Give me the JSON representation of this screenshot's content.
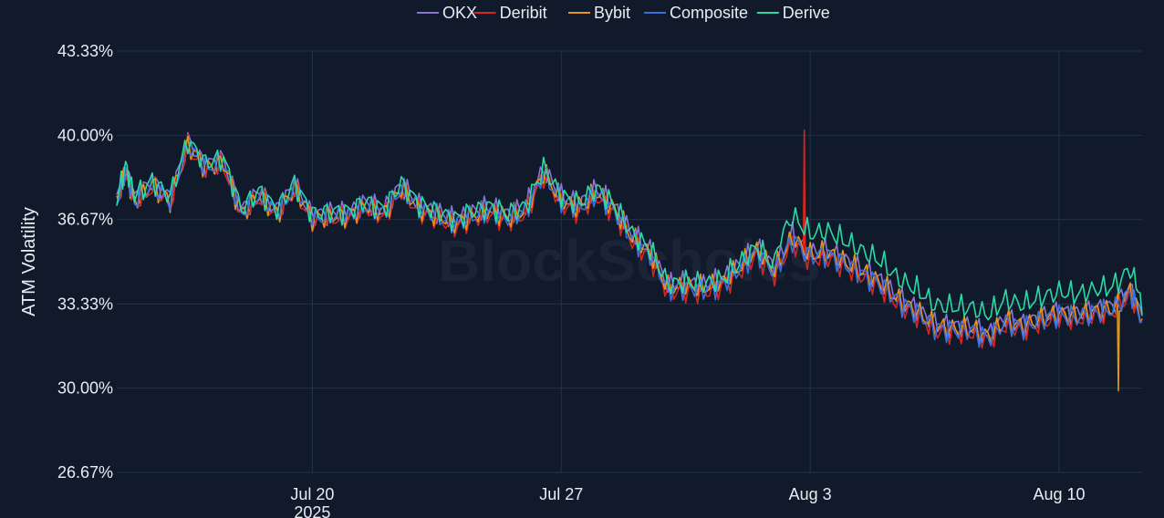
{
  "chart_data": {
    "type": "line",
    "ylabel": "ATM Volatility",
    "xlabel": "",
    "x_range": [
      "2025-07-14T12:00",
      "2025-08-12T08:00"
    ],
    "ylim": [
      26.67,
      43.33
    ],
    "y_ticks": [
      "43.33%",
      "40.00%",
      "36.67%",
      "33.33%",
      "30.00%",
      "26.67%"
    ],
    "y_tick_values": [
      43.33,
      40.0,
      36.67,
      33.33,
      30.0,
      26.67
    ],
    "x_ticks": [
      {
        "date": "2025-07-20",
        "label": "Jul 20",
        "sublabel": "2025"
      },
      {
        "date": "2025-07-27",
        "label": "Jul 27",
        "sublabel": ""
      },
      {
        "date": "2025-08-03",
        "label": "Aug 3",
        "sublabel": ""
      },
      {
        "date": "2025-08-10",
        "label": "Aug 10",
        "sublabel": ""
      }
    ],
    "grid": true,
    "legend_position": "top-center",
    "watermark": "BlockScholes",
    "base_dates": [
      "2025-07-14T12:00",
      "2025-07-14T18:00",
      "2025-07-15T00:00",
      "2025-07-15T12:00",
      "2025-07-16T00:00",
      "2025-07-16T12:00",
      "2025-07-17T00:00",
      "2025-07-17T12:00",
      "2025-07-18T00:00",
      "2025-07-18T12:00",
      "2025-07-19T00:00",
      "2025-07-19T12:00",
      "2025-07-20T00:00",
      "2025-07-20T12:00",
      "2025-07-21T00:00",
      "2025-07-21T12:00",
      "2025-07-22T00:00",
      "2025-07-22T12:00",
      "2025-07-23T00:00",
      "2025-07-23T12:00",
      "2025-07-24T00:00",
      "2025-07-24T12:00",
      "2025-07-25T00:00",
      "2025-07-25T12:00",
      "2025-07-26T00:00",
      "2025-07-26T12:00",
      "2025-07-27T00:00",
      "2025-07-27T12:00",
      "2025-07-28T00:00",
      "2025-07-28T12:00",
      "2025-07-29T00:00",
      "2025-07-29T12:00",
      "2025-07-30T00:00",
      "2025-07-30T12:00",
      "2025-07-31T00:00",
      "2025-07-31T12:00",
      "2025-08-01T00:00",
      "2025-08-01T12:00",
      "2025-08-02T00:00",
      "2025-08-02T12:00",
      "2025-08-03T00:00",
      "2025-08-03T12:00",
      "2025-08-04T00:00",
      "2025-08-04T12:00",
      "2025-08-05T00:00",
      "2025-08-05T12:00",
      "2025-08-06T00:00",
      "2025-08-06T12:00",
      "2025-08-07T00:00",
      "2025-08-07T12:00",
      "2025-08-08T00:00",
      "2025-08-08T12:00",
      "2025-08-09T00:00",
      "2025-08-09T12:00",
      "2025-08-10T00:00",
      "2025-08-10T12:00",
      "2025-08-11T00:00",
      "2025-08-11T12:00",
      "2025-08-12T00:00",
      "2025-08-12T08:00"
    ],
    "base_values": [
      37.3,
      38.6,
      37.4,
      38.0,
      37.4,
      39.6,
      38.7,
      38.9,
      36.9,
      37.6,
      36.9,
      37.9,
      36.7,
      36.8,
      36.8,
      37.2,
      36.9,
      37.9,
      37.1,
      36.8,
      36.5,
      36.8,
      37.0,
      36.7,
      37.0,
      38.5,
      37.4,
      37.1,
      37.7,
      37.0,
      35.9,
      35.3,
      33.9,
      34.0,
      33.9,
      34.1,
      34.7,
      35.4,
      34.6,
      35.9,
      35.2,
      35.3,
      34.9,
      34.5,
      34.1,
      33.4,
      33.0,
      32.4,
      32.3,
      32.3,
      32.0,
      32.6,
      32.4,
      32.7,
      32.9,
      32.8,
      33.0,
      33.1,
      33.8,
      32.7
    ],
    "series": [
      {
        "name": "OKX",
        "color": "#8b74d6",
        "offset": 0.15
      },
      {
        "name": "Deribit",
        "color": "#d6261f",
        "offset": -0.1,
        "spike": {
          "date": "2025-08-02T20:00",
          "value": 40.2
        }
      },
      {
        "name": "Bybit",
        "color": "#e0961a",
        "offset": 0.05,
        "spike": {
          "date": "2025-08-11T16:00",
          "value": 29.9
        }
      },
      {
        "name": "Composite",
        "color": "#3a6fe0",
        "offset": 0.0
      },
      {
        "name": "Derive",
        "color": "#2ad9a5",
        "offset": 0.2,
        "late_offset": 0.7
      }
    ]
  }
}
